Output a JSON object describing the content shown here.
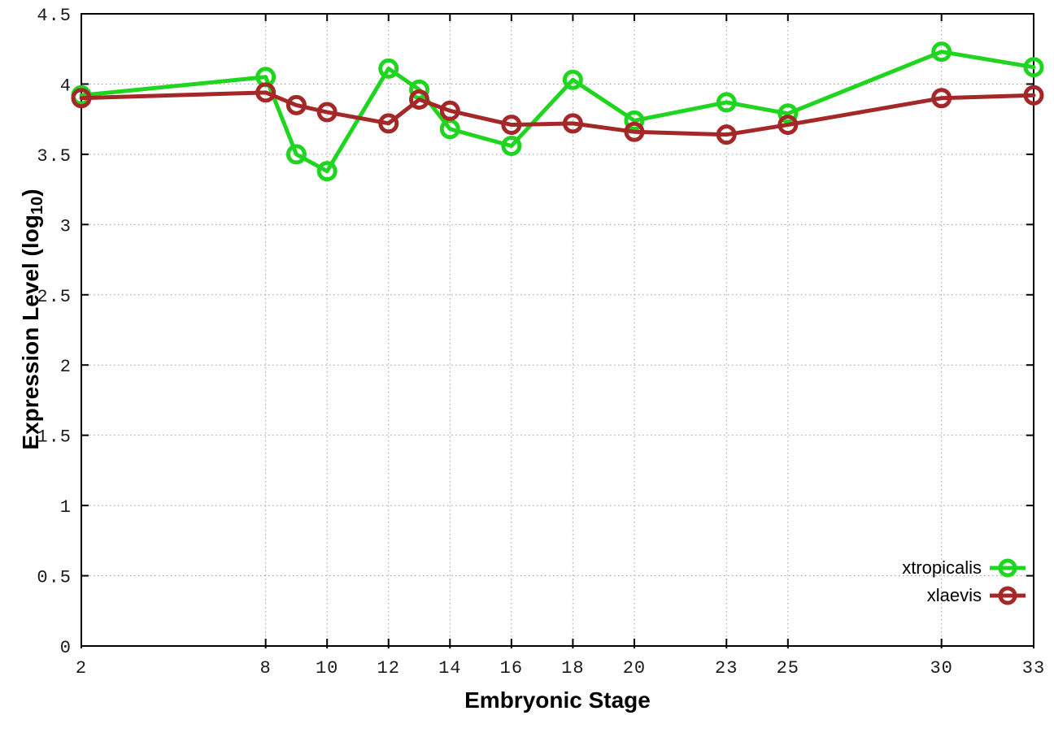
{
  "figure": {
    "background": "#ffffff"
  },
  "chart_data": {
    "type": "line",
    "title": "",
    "xlabel": "Embryonic Stage",
    "ylabel": "Expression Level (log10)",
    "ylabel_parts": {
      "prefix": "Expression Level (log",
      "subscript": "10",
      "suffix": ")"
    },
    "xlim": [
      2,
      33
    ],
    "ylim": [
      0,
      4.5
    ],
    "xticks": [
      2,
      8,
      10,
      12,
      14,
      16,
      18,
      20,
      23,
      25,
      30,
      33
    ],
    "xtick_labels": [
      "2",
      "8",
      "10",
      "12",
      "14",
      "16",
      "18",
      "20",
      "23",
      "25",
      "30",
      "33"
    ],
    "yticks": [
      0,
      0.5,
      1,
      1.5,
      2,
      2.5,
      3,
      3.5,
      4,
      4.5
    ],
    "ytick_labels": [
      "0",
      "0.5",
      "1",
      "1.5",
      "2",
      "2.5",
      "3",
      "3.5",
      "4",
      "4.5"
    ],
    "grid": "dotted",
    "legend_position": "bottom-right",
    "x": [
      2,
      8,
      9,
      10,
      12,
      13,
      14,
      16,
      18,
      20,
      23,
      25,
      30,
      33
    ],
    "series": [
      {
        "name": "xtropicalis",
        "color": "#1fd51f",
        "marker": "open-circle",
        "values": [
          3.92,
          4.05,
          3.5,
          3.38,
          4.11,
          3.96,
          3.68,
          3.56,
          4.03,
          3.74,
          3.87,
          3.79,
          4.23,
          4.12
        ]
      },
      {
        "name": "xlaevis",
        "color": "#a52828",
        "marker": "open-circle",
        "values": [
          3.9,
          3.94,
          3.85,
          3.8,
          3.72,
          3.89,
          3.81,
          3.71,
          3.72,
          3.66,
          3.64,
          3.71,
          3.9,
          3.92
        ]
      }
    ],
    "style": {
      "grid_color": "#9e9e9e",
      "axis_color": "#000000",
      "tick_label_color": "#1a1a1a",
      "line_width": 5,
      "marker_radius": 10,
      "marker_stroke": 5
    }
  }
}
